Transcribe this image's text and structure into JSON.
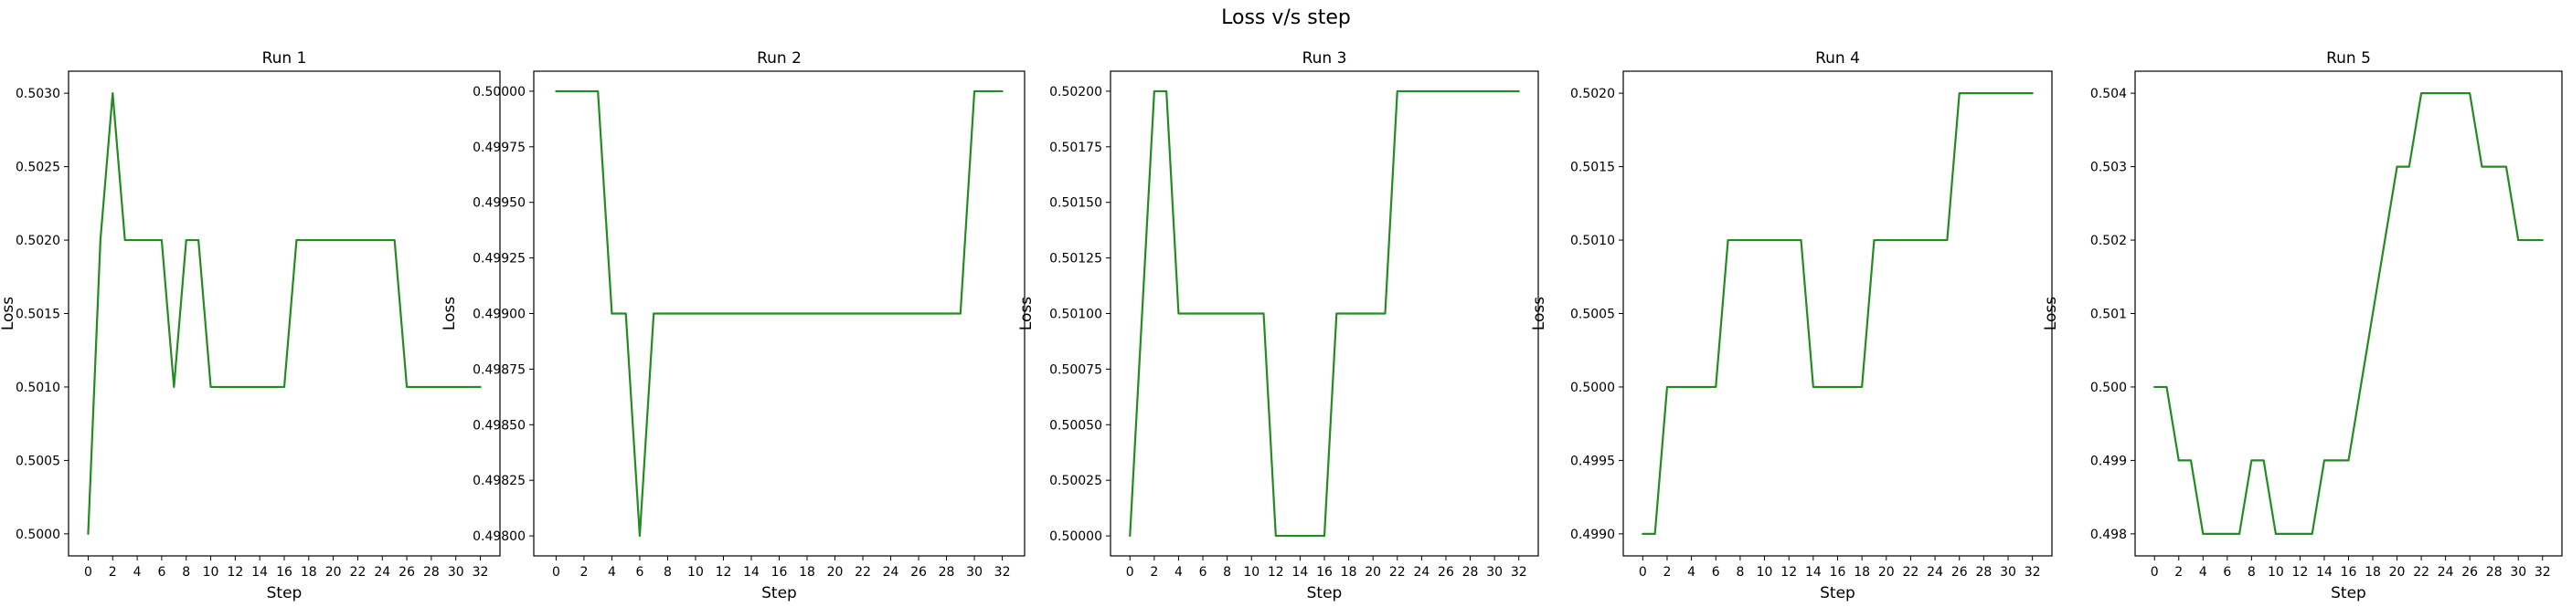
{
  "figure": {
    "suptitle": "Loss v/s step"
  },
  "colors": {
    "line": "#228B22",
    "axes": "#000000",
    "background": "#ffffff"
  },
  "chart_data": [
    {
      "type": "line",
      "title": "Run 1",
      "xlabel": "Step",
      "ylabel": "Loss",
      "xlim": [
        -1.6,
        33.6
      ],
      "ylim": [
        0.49985,
        0.50315
      ],
      "xticks": [
        0,
        2,
        4,
        6,
        8,
        10,
        12,
        14,
        16,
        18,
        20,
        22,
        24,
        26,
        28,
        30,
        32
      ],
      "yticks": [
        0.5,
        0.5005,
        0.501,
        0.5015,
        0.502,
        0.5025,
        0.503
      ],
      "yticklabels": [
        "0.5000",
        "0.5005",
        "0.5010",
        "0.5015",
        "0.5020",
        "0.5025",
        "0.5030"
      ],
      "grid": false,
      "x": [
        0,
        1,
        2,
        3,
        4,
        5,
        6,
        7,
        8,
        9,
        10,
        11,
        12,
        13,
        14,
        15,
        16,
        17,
        18,
        19,
        20,
        21,
        22,
        23,
        24,
        25,
        26,
        27,
        28,
        29,
        30,
        31,
        32
      ],
      "series": [
        {
          "values": [
            0.5,
            0.502,
            0.503,
            0.502,
            0.502,
            0.502,
            0.502,
            0.501,
            0.502,
            0.502,
            0.501,
            0.501,
            0.501,
            0.501,
            0.501,
            0.501,
            0.501,
            0.502,
            0.502,
            0.502,
            0.502,
            0.502,
            0.502,
            0.502,
            0.502,
            0.502,
            0.501,
            0.501,
            0.501,
            0.501,
            0.501,
            0.501,
            0.501
          ]
        }
      ]
    },
    {
      "type": "line",
      "title": "Run 2",
      "xlabel": "Step",
      "ylabel": "Loss",
      "xlim": [
        -1.6,
        33.6
      ],
      "ylim": [
        0.49791,
        0.50009
      ],
      "xticks": [
        0,
        2,
        4,
        6,
        8,
        10,
        12,
        14,
        16,
        18,
        20,
        22,
        24,
        26,
        28,
        30,
        32
      ],
      "yticks": [
        0.498,
        0.49825,
        0.4985,
        0.49875,
        0.499,
        0.49925,
        0.4995,
        0.49975,
        0.5
      ],
      "yticklabels": [
        "0.49800",
        "0.49825",
        "0.49850",
        "0.49875",
        "0.49900",
        "0.49925",
        "0.49950",
        "0.49975",
        "0.50000"
      ],
      "grid": false,
      "x": [
        0,
        1,
        2,
        3,
        4,
        5,
        6,
        7,
        8,
        9,
        10,
        11,
        12,
        13,
        14,
        15,
        16,
        17,
        18,
        19,
        20,
        21,
        22,
        23,
        24,
        25,
        26,
        27,
        28,
        29,
        30,
        31,
        32
      ],
      "series": [
        {
          "values": [
            0.5,
            0.5,
            0.5,
            0.5,
            0.499,
            0.499,
            0.498,
            0.499,
            0.499,
            0.499,
            0.499,
            0.499,
            0.499,
            0.499,
            0.499,
            0.499,
            0.499,
            0.499,
            0.499,
            0.499,
            0.499,
            0.499,
            0.499,
            0.499,
            0.499,
            0.499,
            0.499,
            0.499,
            0.499,
            0.499,
            0.5,
            0.5,
            0.5
          ]
        }
      ]
    },
    {
      "type": "line",
      "title": "Run 3",
      "xlabel": "Step",
      "ylabel": "Loss",
      "xlim": [
        -1.6,
        33.6
      ],
      "ylim": [
        0.49991,
        0.50209
      ],
      "xticks": [
        0,
        2,
        4,
        6,
        8,
        10,
        12,
        14,
        16,
        18,
        20,
        22,
        24,
        26,
        28,
        30,
        32
      ],
      "yticks": [
        0.5,
        0.50025,
        0.5005,
        0.50075,
        0.501,
        0.50125,
        0.5015,
        0.50175,
        0.502
      ],
      "yticklabels": [
        "0.50000",
        "0.50025",
        "0.50050",
        "0.50075",
        "0.50100",
        "0.50125",
        "0.50150",
        "0.50175",
        "0.50200"
      ],
      "grid": false,
      "x": [
        0,
        1,
        2,
        3,
        4,
        5,
        6,
        7,
        8,
        9,
        10,
        11,
        12,
        13,
        14,
        15,
        16,
        17,
        18,
        19,
        20,
        21,
        22,
        23,
        24,
        25,
        26,
        27,
        28,
        29,
        30,
        31,
        32
      ],
      "series": [
        {
          "values": [
            0.5,
            0.501,
            0.502,
            0.502,
            0.501,
            0.501,
            0.501,
            0.501,
            0.501,
            0.501,
            0.501,
            0.501,
            0.5,
            0.5,
            0.5,
            0.5,
            0.5,
            0.501,
            0.501,
            0.501,
            0.501,
            0.501,
            0.502,
            0.502,
            0.502,
            0.502,
            0.502,
            0.502,
            0.502,
            0.502,
            0.502,
            0.502,
            0.502
          ]
        }
      ]
    },
    {
      "type": "line",
      "title": "Run 4",
      "xlabel": "Step",
      "ylabel": "Loss",
      "xlim": [
        -1.6,
        33.6
      ],
      "ylim": [
        0.49885,
        0.50215
      ],
      "xticks": [
        0,
        2,
        4,
        6,
        8,
        10,
        12,
        14,
        16,
        18,
        20,
        22,
        24,
        26,
        28,
        30,
        32
      ],
      "yticks": [
        0.499,
        0.4995,
        0.5,
        0.5005,
        0.501,
        0.5015,
        0.502
      ],
      "yticklabels": [
        "0.4990",
        "0.4995",
        "0.5000",
        "0.5005",
        "0.5010",
        "0.5015",
        "0.5020"
      ],
      "grid": false,
      "x": [
        0,
        1,
        2,
        3,
        4,
        5,
        6,
        7,
        8,
        9,
        10,
        11,
        12,
        13,
        14,
        15,
        16,
        17,
        18,
        19,
        20,
        21,
        22,
        23,
        24,
        25,
        26,
        27,
        28,
        29,
        30,
        31,
        32
      ],
      "series": [
        {
          "values": [
            0.499,
            0.499,
            0.5,
            0.5,
            0.5,
            0.5,
            0.5,
            0.501,
            0.501,
            0.501,
            0.501,
            0.501,
            0.501,
            0.501,
            0.5,
            0.5,
            0.5,
            0.5,
            0.5,
            0.501,
            0.501,
            0.501,
            0.501,
            0.501,
            0.501,
            0.501,
            0.502,
            0.502,
            0.502,
            0.502,
            0.502,
            0.502,
            0.502
          ]
        }
      ]
    },
    {
      "type": "line",
      "title": "Run 5",
      "xlabel": "Step",
      "ylabel": "Loss",
      "xlim": [
        -1.6,
        33.6
      ],
      "ylim": [
        0.4977,
        0.5043
      ],
      "xticks": [
        0,
        2,
        4,
        6,
        8,
        10,
        12,
        14,
        16,
        18,
        20,
        22,
        24,
        26,
        28,
        30,
        32
      ],
      "yticks": [
        0.498,
        0.499,
        0.5,
        0.501,
        0.502,
        0.503,
        0.504
      ],
      "yticklabels": [
        "0.498",
        "0.499",
        "0.500",
        "0.501",
        "0.502",
        "0.503",
        "0.504"
      ],
      "grid": false,
      "x": [
        0,
        1,
        2,
        3,
        4,
        5,
        6,
        7,
        8,
        9,
        10,
        11,
        12,
        13,
        14,
        15,
        16,
        17,
        18,
        19,
        20,
        21,
        22,
        23,
        24,
        25,
        26,
        27,
        28,
        29,
        30,
        31,
        32
      ],
      "series": [
        {
          "values": [
            0.5,
            0.5,
            0.499,
            0.499,
            0.498,
            0.498,
            0.498,
            0.498,
            0.499,
            0.499,
            0.498,
            0.498,
            0.498,
            0.498,
            0.499,
            0.499,
            0.499,
            0.5,
            0.501,
            0.502,
            0.503,
            0.503,
            0.504,
            0.504,
            0.504,
            0.504,
            0.504,
            0.503,
            0.503,
            0.503,
            0.502,
            0.502,
            0.502
          ]
        }
      ]
    }
  ]
}
